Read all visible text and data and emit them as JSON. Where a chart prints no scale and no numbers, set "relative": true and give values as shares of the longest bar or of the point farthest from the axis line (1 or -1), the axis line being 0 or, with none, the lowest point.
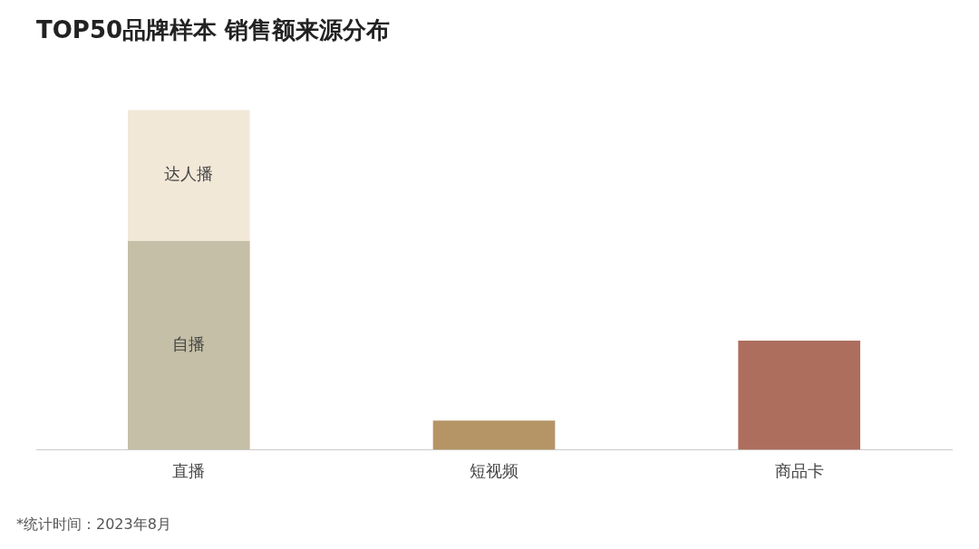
{
  "chart_data": {
    "type": "bar",
    "title": "TOP50品牌样本 销售额来源分布",
    "categories": [
      "直播",
      "短视频",
      "商品卡"
    ],
    "relative": true,
    "stacked": true,
    "grid": false,
    "legend": false,
    "series": [
      {
        "name": "自播",
        "colors": [
          "#c4bfa6",
          "#b59466",
          "#ad6e5e"
        ],
        "values": [
          0.614,
          0.086,
          0.321
        ]
      },
      {
        "name": "达人播",
        "color": "#f2e8d8",
        "values": [
          0.386,
          null,
          null
        ]
      }
    ],
    "annotations": [
      "*统计时间：2023年8月"
    ]
  }
}
